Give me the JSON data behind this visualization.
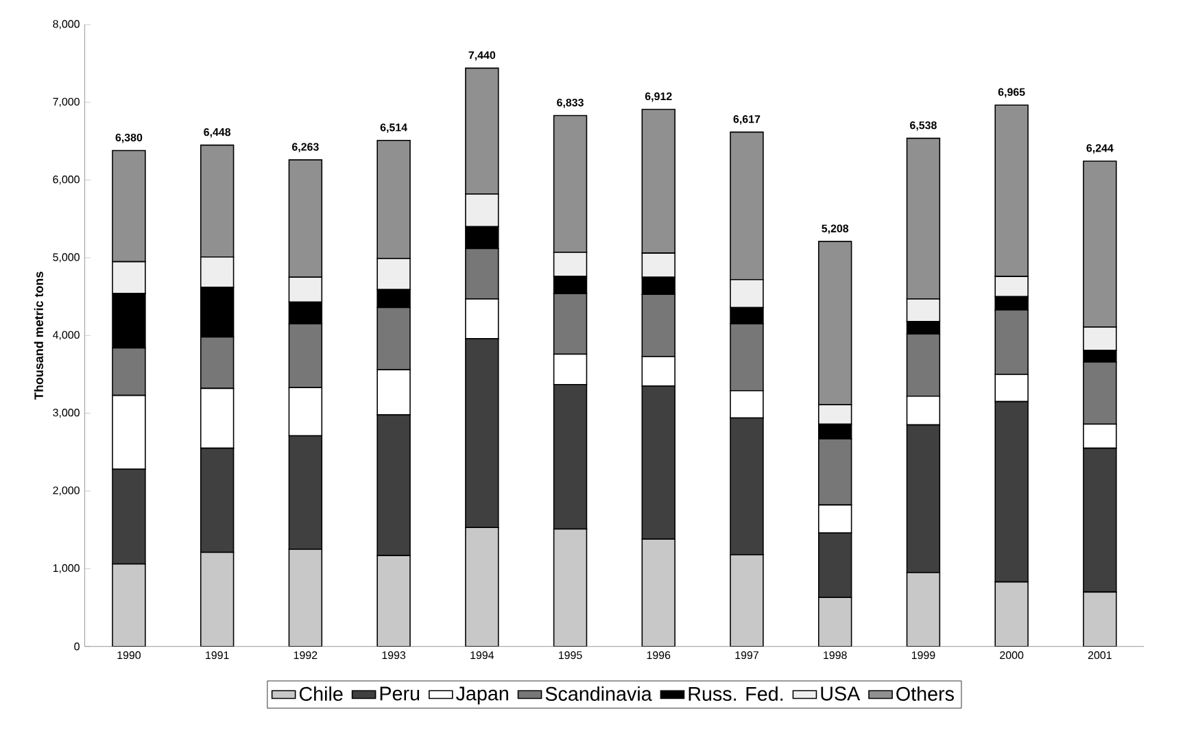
{
  "chart_data": {
    "type": "bar",
    "stacked": true,
    "ylabel": "Thousand metric tons",
    "categories": [
      "1990",
      "1991",
      "1992",
      "1993",
      "1994",
      "1995",
      "1996",
      "1997",
      "1998",
      "1999",
      "2000",
      "2001"
    ],
    "series": [
      {
        "name": "Chile",
        "color": "#c8c8c8",
        "values": [
          1060,
          1210,
          1250,
          1170,
          1530,
          1510,
          1380,
          1180,
          630,
          950,
          830,
          700
        ]
      },
      {
        "name": "Peru",
        "color": "#404040",
        "values": [
          1220,
          1340,
          1460,
          1810,
          2430,
          1860,
          1970,
          1760,
          830,
          1900,
          2320,
          1850
        ]
      },
      {
        "name": "Japan",
        "color": "#ffffff",
        "values": [
          950,
          770,
          620,
          580,
          510,
          390,
          380,
          350,
          360,
          370,
          350,
          310
        ]
      },
      {
        "name": "Scandinavia",
        "color": "#777777",
        "values": [
          610,
          660,
          820,
          800,
          650,
          780,
          800,
          860,
          850,
          800,
          830,
          800
        ]
      },
      {
        "name": "Russ. Fed.",
        "color": "#000000",
        "values": [
          700,
          640,
          280,
          230,
          280,
          220,
          220,
          210,
          190,
          160,
          170,
          150
        ]
      },
      {
        "name": "USA",
        "color": "#eeeeee",
        "values": [
          410,
          390,
          320,
          400,
          420,
          310,
          310,
          360,
          250,
          290,
          260,
          300
        ]
      },
      {
        "name": "Others",
        "color": "#909090",
        "values": [
          1430,
          1440,
          1510,
          1520,
          1620,
          1760,
          1850,
          1897,
          2100,
          2068,
          2205,
          2134
        ]
      }
    ],
    "totals": [
      "6,380",
      "6,448",
      "6,263",
      "6,514",
      "7,440",
      "6,833",
      "6,912",
      "6,617",
      "5,208",
      "6,538",
      "6,965",
      "6,244"
    ],
    "ylim": [
      0,
      8000
    ],
    "yticks": [
      0,
      {
        "value": 1000,
        "label": "1,000"
      },
      {
        "value": 2000,
        "label": "2,000"
      },
      {
        "value": 3000,
        "label": "3,000"
      },
      {
        "value": 4000,
        "label": "4,000"
      },
      {
        "value": 5000,
        "label": "5,000"
      },
      {
        "value": 6000,
        "label": "6,000"
      },
      {
        "value": 7000,
        "label": "7,000"
      },
      {
        "value": 8000,
        "label": "8,000"
      }
    ],
    "grid": false,
    "legend": "bottom"
  }
}
